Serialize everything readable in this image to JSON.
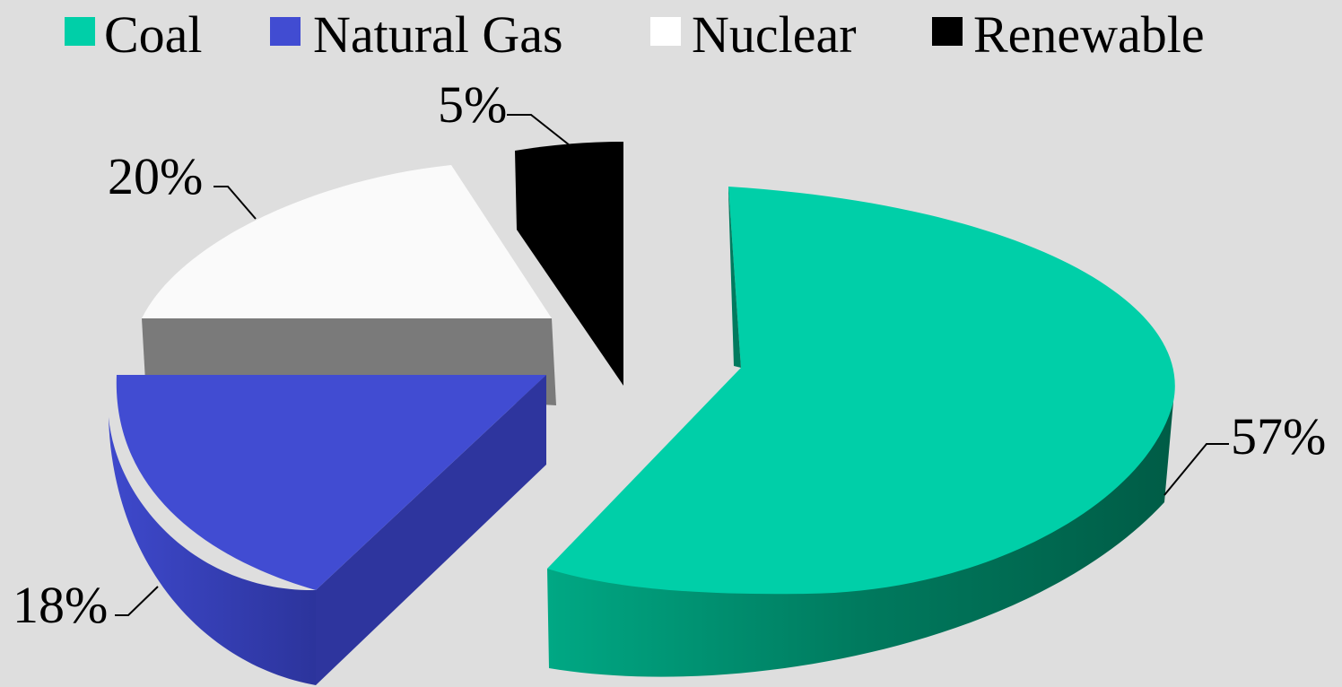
{
  "chart_data": {
    "type": "pie",
    "style": "3d-exploded",
    "title": "",
    "legend_position": "top",
    "categories": [
      "Coal",
      "Natural Gas",
      "Nuclear",
      "Renewable"
    ],
    "values": [
      57,
      18,
      20,
      5
    ],
    "data_labels": [
      "57%",
      "18%",
      "20%",
      "5%"
    ],
    "colors": [
      "#00cfa8",
      "#414cd2",
      "#fafafa",
      "#000000"
    ],
    "side_colors": [
      "#00906f",
      "#2f36a0",
      "#7a7a7a",
      "#000000"
    ]
  }
}
